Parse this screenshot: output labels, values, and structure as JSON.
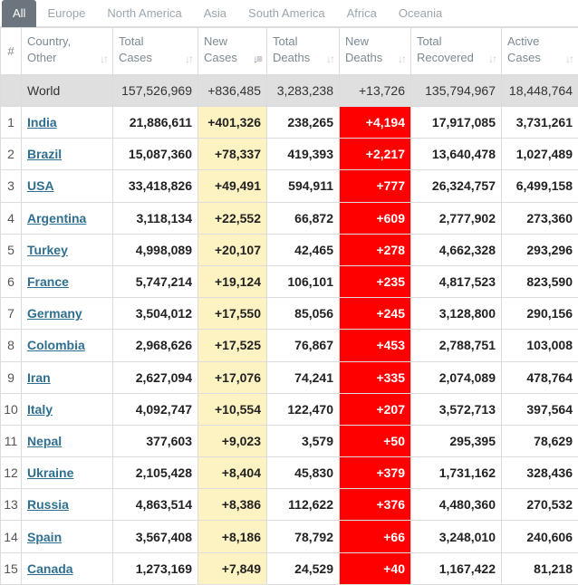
{
  "tabs": [
    "All",
    "Europe",
    "North America",
    "Asia",
    "South America",
    "Africa",
    "Oceania"
  ],
  "active_tab": 0,
  "headers": {
    "num": "#",
    "country": [
      "Country,",
      "Other"
    ],
    "total_cases": [
      "Total",
      "Cases"
    ],
    "new_cases": [
      "New",
      "Cases"
    ],
    "total_deaths": [
      "Total",
      "Deaths"
    ],
    "new_deaths": [
      "New",
      "Deaths"
    ],
    "total_recovered": [
      "Total",
      "Recovered"
    ],
    "active_cases": [
      "Active",
      "Cases"
    ]
  },
  "world": {
    "name": "World",
    "total_cases": "157,526,969",
    "new_cases": "+836,485",
    "total_deaths": "3,283,238",
    "new_deaths": "+13,726",
    "total_recovered": "135,794,967",
    "active_cases": "18,448,764"
  },
  "rows": [
    {
      "rank": "1",
      "name": "India",
      "total_cases": "21,886,611",
      "new_cases": "+401,326",
      "total_deaths": "238,265",
      "new_deaths": "+4,194",
      "total_recovered": "17,917,085",
      "active_cases": "3,731,261"
    },
    {
      "rank": "2",
      "name": "Brazil",
      "total_cases": "15,087,360",
      "new_cases": "+78,337",
      "total_deaths": "419,393",
      "new_deaths": "+2,217",
      "total_recovered": "13,640,478",
      "active_cases": "1,027,489"
    },
    {
      "rank": "3",
      "name": "USA",
      "total_cases": "33,418,826",
      "new_cases": "+49,491",
      "total_deaths": "594,911",
      "new_deaths": "+777",
      "total_recovered": "26,324,757",
      "active_cases": "6,499,158"
    },
    {
      "rank": "4",
      "name": "Argentina",
      "total_cases": "3,118,134",
      "new_cases": "+22,552",
      "total_deaths": "66,872",
      "new_deaths": "+609",
      "total_recovered": "2,777,902",
      "active_cases": "273,360"
    },
    {
      "rank": "5",
      "name": "Turkey",
      "total_cases": "4,998,089",
      "new_cases": "+20,107",
      "total_deaths": "42,465",
      "new_deaths": "+278",
      "total_recovered": "4,662,328",
      "active_cases": "293,296"
    },
    {
      "rank": "6",
      "name": "France",
      "total_cases": "5,747,214",
      "new_cases": "+19,124",
      "total_deaths": "106,101",
      "new_deaths": "+235",
      "total_recovered": "4,817,523",
      "active_cases": "823,590"
    },
    {
      "rank": "7",
      "name": "Germany",
      "total_cases": "3,504,012",
      "new_cases": "+17,550",
      "total_deaths": "85,056",
      "new_deaths": "+245",
      "total_recovered": "3,128,800",
      "active_cases": "290,156"
    },
    {
      "rank": "8",
      "name": "Colombia",
      "total_cases": "2,968,626",
      "new_cases": "+17,525",
      "total_deaths": "76,867",
      "new_deaths": "+453",
      "total_recovered": "2,788,751",
      "active_cases": "103,008"
    },
    {
      "rank": "9",
      "name": "Iran",
      "total_cases": "2,627,094",
      "new_cases": "+17,076",
      "total_deaths": "74,241",
      "new_deaths": "+335",
      "total_recovered": "2,074,089",
      "active_cases": "478,764"
    },
    {
      "rank": "10",
      "name": "Italy",
      "total_cases": "4,092,747",
      "new_cases": "+10,554",
      "total_deaths": "122,470",
      "new_deaths": "+207",
      "total_recovered": "3,572,713",
      "active_cases": "397,564"
    },
    {
      "rank": "11",
      "name": "Nepal",
      "total_cases": "377,603",
      "new_cases": "+9,023",
      "total_deaths": "3,579",
      "new_deaths": "+50",
      "total_recovered": "295,395",
      "active_cases": "78,629"
    },
    {
      "rank": "12",
      "name": "Ukraine",
      "total_cases": "2,105,428",
      "new_cases": "+8,404",
      "total_deaths": "45,830",
      "new_deaths": "+379",
      "total_recovered": "1,731,162",
      "active_cases": "328,436"
    },
    {
      "rank": "13",
      "name": "Russia",
      "total_cases": "4,863,514",
      "new_cases": "+8,386",
      "total_deaths": "112,622",
      "new_deaths": "+376",
      "total_recovered": "4,480,360",
      "active_cases": "270,532"
    },
    {
      "rank": "14",
      "name": "Spain",
      "total_cases": "3,567,408",
      "new_cases": "+8,186",
      "total_deaths": "78,792",
      "new_deaths": "+66",
      "total_recovered": "3,248,010",
      "active_cases": "240,606"
    },
    {
      "rank": "15",
      "name": "Canada",
      "total_cases": "1,273,169",
      "new_cases": "+7,849",
      "total_deaths": "24,529",
      "new_deaths": "+40",
      "total_recovered": "1,167,422",
      "active_cases": "81,218"
    }
  ],
  "colors": {
    "new_cases_bg": "#fcf2c2",
    "new_deaths_bg": "#ff0000",
    "world_row_bg": "#dfdfdf",
    "active_tab_bg": "#6c757d",
    "link": "#2f6f8f"
  },
  "icons": {
    "sort": "sort-arrows-icon",
    "sort_active": "sort-desc-icon"
  }
}
